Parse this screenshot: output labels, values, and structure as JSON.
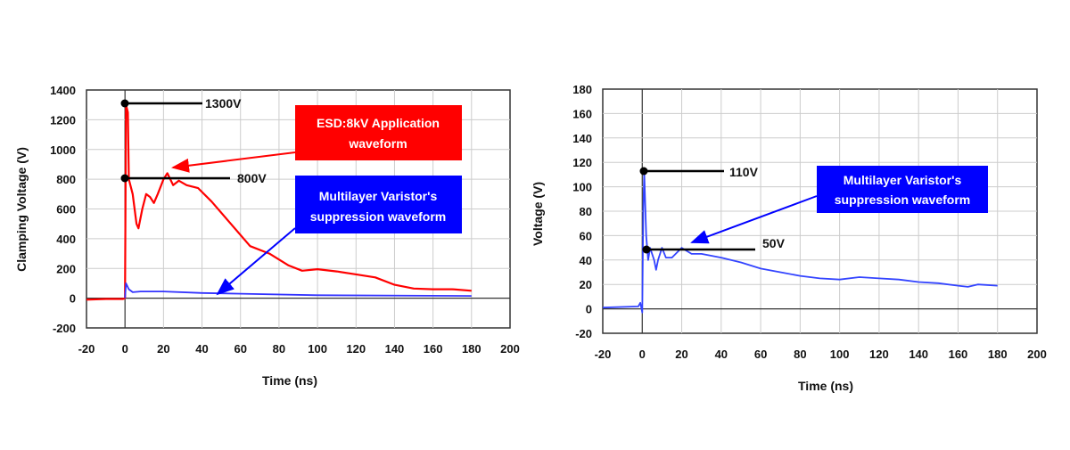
{
  "chart_data": [
    {
      "type": "line",
      "xlabel": "Time (ns)",
      "ylabel": "Clamping Voltage (V)",
      "xlim": [
        -20,
        200
      ],
      "ylim": [
        -200,
        1400
      ],
      "xticks": [
        -20,
        0,
        20,
        40,
        60,
        80,
        100,
        120,
        140,
        160,
        180,
        200
      ],
      "yticks": [
        -200,
        0,
        200,
        400,
        600,
        800,
        1000,
        1200,
        1400
      ],
      "grid": true,
      "annotations": [
        {
          "label": "1300V",
          "x": 0,
          "y": 1300
        },
        {
          "label": "800V",
          "x": 0,
          "y": 800
        }
      ],
      "callouts": [
        {
          "lines": [
            "ESD:8kV Application",
            "waveform"
          ],
          "color": "#ff0000"
        },
        {
          "lines": [
            "Multilayer Varistor's",
            "suppression waveform"
          ],
          "color": "#0000ff"
        }
      ],
      "series": [
        {
          "name": "ESD:8kV Application waveform",
          "color": "#ff0000",
          "x": [
            -20,
            -10,
            -1,
            0,
            0.5,
            1.5,
            2,
            4,
            6,
            7,
            9,
            11,
            13,
            15,
            17,
            20,
            22,
            25,
            28,
            32,
            38,
            45,
            55,
            65,
            75,
            85,
            92,
            100,
            110,
            120,
            130,
            140,
            150,
            160,
            170,
            180
          ],
          "y": [
            -10,
            -5,
            -5,
            0,
            1300,
            1250,
            800,
            700,
            500,
            470,
            600,
            700,
            680,
            640,
            700,
            800,
            840,
            760,
            790,
            760,
            740,
            650,
            500,
            350,
            300,
            220,
            185,
            195,
            180,
            160,
            140,
            90,
            65,
            60,
            60,
            50
          ]
        },
        {
          "name": "Multilayer Varistor's suppression waveform",
          "color": "#3333ff",
          "x": [
            0,
            0.5,
            2,
            4,
            8,
            20,
            40,
            60,
            100,
            180
          ],
          "y": [
            0,
            100,
            60,
            40,
            45,
            45,
            35,
            30,
            20,
            15
          ]
        }
      ]
    },
    {
      "type": "line",
      "xlabel": "Time (ns)",
      "ylabel": "Voltage (V)",
      "xlim": [
        -20,
        200
      ],
      "ylim": [
        -20,
        180
      ],
      "xticks": [
        -20,
        0,
        20,
        40,
        60,
        80,
        100,
        120,
        140,
        160,
        180,
        200
      ],
      "yticks": [
        -20,
        0,
        20,
        40,
        60,
        80,
        100,
        120,
        140,
        160,
        180
      ],
      "grid": true,
      "annotations": [
        {
          "label": "110V",
          "x": 0,
          "y": 112
        },
        {
          "label": "50V",
          "x": 2,
          "y": 50
        }
      ],
      "callouts": [
        {
          "lines": [
            "Multilayer Varistor's",
            "suppression waveform"
          ],
          "color": "#0000ff"
        }
      ],
      "series": [
        {
          "name": "Multilayer Varistor's suppression waveform",
          "color": "#3344ff",
          "x": [
            -20,
            -2,
            -1,
            0,
            0.5,
            1,
            2,
            3,
            4,
            5,
            6,
            7,
            8,
            10,
            12,
            15,
            20,
            25,
            30,
            40,
            50,
            60,
            70,
            80,
            90,
            100,
            110,
            120,
            130,
            140,
            150,
            160,
            165,
            170,
            180
          ],
          "y": [
            1,
            2,
            5,
            -3,
            80,
            112,
            60,
            40,
            50,
            45,
            40,
            32,
            40,
            50,
            42,
            42,
            50,
            45,
            45,
            42,
            38,
            33,
            30,
            27,
            25,
            24,
            26,
            25,
            24,
            22,
            21,
            19,
            18,
            20,
            19
          ]
        }
      ]
    }
  ]
}
